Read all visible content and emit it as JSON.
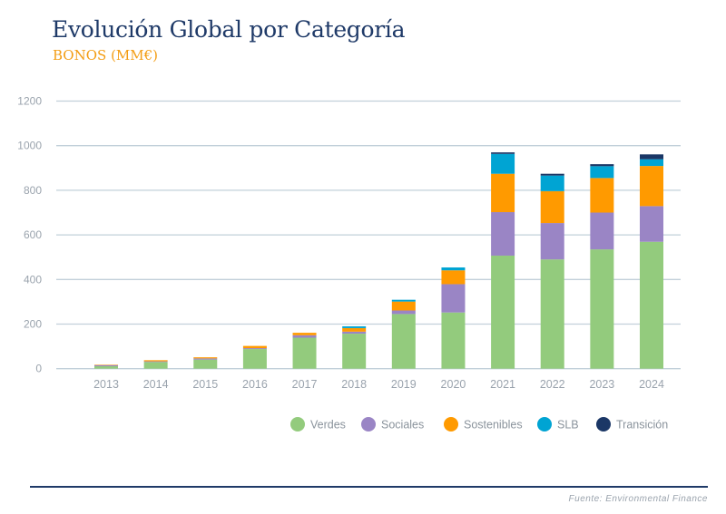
{
  "title": "Evolución Global por Categoría",
  "subtitle": "BONOS (MM€)",
  "source": "Fuente: Environmental Finance",
  "chart_data": {
    "type": "bar",
    "stacked": true,
    "categories": [
      "2013",
      "2014",
      "2015",
      "2016",
      "2017",
      "2018",
      "2019",
      "2020",
      "2021",
      "2022",
      "2023",
      "2024"
    ],
    "series": [
      {
        "name": "Verdes",
        "color": "#93cb7d",
        "values": [
          11,
          30,
          41,
          88,
          139,
          157,
          245,
          252,
          507,
          490,
          535,
          569
        ]
      },
      {
        "name": "Sociales",
        "color": "#9a85c5",
        "values": [
          5,
          3,
          5,
          4,
          11,
          9,
          16,
          127,
          195,
          163,
          165,
          160
        ]
      },
      {
        "name": "Sostenibles",
        "color": "#ff9a00",
        "values": [
          2,
          5,
          5,
          10,
          11,
          16,
          40,
          62,
          172,
          143,
          155,
          180
        ]
      },
      {
        "name": "SLB",
        "color": "#00a4d3",
        "values": [
          0,
          0,
          0,
          0,
          0,
          8,
          8,
          13,
          89,
          70,
          53,
          30
        ]
      },
      {
        "name": "Transición",
        "color": "#1b3766",
        "values": [
          0,
          0,
          0,
          0,
          0,
          0,
          0,
          0,
          7,
          8,
          9,
          22
        ]
      }
    ],
    "yticks": [
      0,
      200,
      400,
      600,
      800,
      1000,
      1200
    ],
    "ylim": [
      0,
      1200
    ],
    "grid": true,
    "legend": "bottom-right"
  }
}
